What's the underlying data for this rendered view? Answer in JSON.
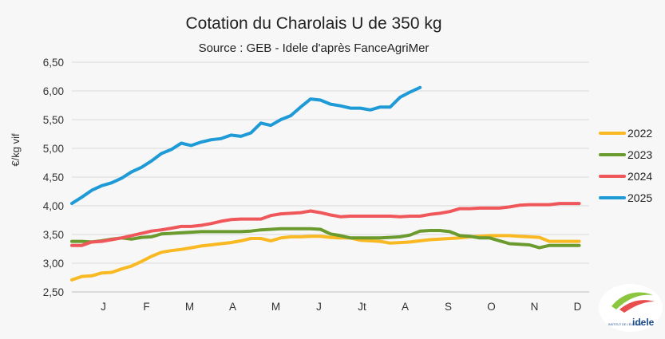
{
  "chart_data": {
    "type": "line",
    "title": "Cotation du Charolais U de 350 kg",
    "subtitle": "Source : GEB - Idele d'après FanceAgriMer",
    "xlabel": "",
    "ylabel": "€/kg vif",
    "ylim": [
      2.5,
      6.5
    ],
    "yticks": [
      "2,50",
      "3,00",
      "3,50",
      "4,00",
      "4,50",
      "5,00",
      "5,50",
      "6,00",
      "6,50"
    ],
    "x_range": [
      0,
      52
    ],
    "x_tick_labels": [
      "J",
      "F",
      "M",
      "A",
      "M",
      "J",
      "Jt",
      "A",
      "S",
      "O",
      "N",
      "D"
    ],
    "grid": true,
    "legend_position": "right",
    "series": [
      {
        "name": "2022",
        "color": "#f9b923",
        "x": [
          0,
          1,
          2,
          3,
          4,
          5,
          6,
          7,
          8,
          9,
          10,
          11,
          12,
          13,
          14,
          15,
          16,
          17,
          18,
          19,
          20,
          21,
          22,
          23,
          24,
          25,
          26,
          27,
          28,
          29,
          30,
          31,
          32,
          33,
          34,
          35,
          36,
          37,
          38,
          39,
          40,
          41,
          42,
          43,
          44,
          45,
          46,
          47,
          48,
          49,
          50,
          51
        ],
        "values": [
          2.71,
          2.77,
          2.78,
          2.83,
          2.84,
          2.9,
          2.95,
          3.03,
          3.12,
          3.19,
          3.22,
          3.24,
          3.27,
          3.3,
          3.32,
          3.34,
          3.36,
          3.39,
          3.43,
          3.43,
          3.39,
          3.44,
          3.46,
          3.46,
          3.47,
          3.47,
          3.45,
          3.44,
          3.44,
          3.4,
          3.39,
          3.38,
          3.35,
          3.36,
          3.37,
          3.39,
          3.41,
          3.42,
          3.43,
          3.44,
          3.46,
          3.47,
          3.48,
          3.48,
          3.48,
          3.47,
          3.46,
          3.45,
          3.38,
          3.38,
          3.38,
          3.38
        ]
      },
      {
        "name": "2023",
        "color": "#6b9a2e",
        "x": [
          0,
          1,
          2,
          3,
          4,
          5,
          6,
          7,
          8,
          9,
          10,
          11,
          12,
          13,
          14,
          15,
          16,
          17,
          18,
          19,
          20,
          21,
          22,
          23,
          24,
          25,
          26,
          27,
          28,
          29,
          30,
          31,
          32,
          33,
          34,
          35,
          36,
          37,
          38,
          39,
          40,
          41,
          42,
          43,
          44,
          45,
          46,
          47,
          48,
          49,
          50,
          51
        ],
        "values": [
          3.38,
          3.38,
          3.37,
          3.39,
          3.42,
          3.44,
          3.42,
          3.45,
          3.46,
          3.51,
          3.52,
          3.53,
          3.54,
          3.55,
          3.55,
          3.55,
          3.55,
          3.55,
          3.56,
          3.58,
          3.59,
          3.6,
          3.6,
          3.6,
          3.6,
          3.59,
          3.51,
          3.48,
          3.44,
          3.44,
          3.44,
          3.44,
          3.45,
          3.46,
          3.49,
          3.56,
          3.57,
          3.57,
          3.55,
          3.48,
          3.47,
          3.44,
          3.44,
          3.39,
          3.34,
          3.33,
          3.32,
          3.27,
          3.31,
          3.31,
          3.31,
          3.31
        ]
      },
      {
        "name": "2024",
        "color": "#f0575a",
        "x": [
          0,
          1,
          2,
          3,
          4,
          5,
          6,
          7,
          8,
          9,
          10,
          11,
          12,
          13,
          14,
          15,
          16,
          17,
          18,
          19,
          20,
          21,
          22,
          23,
          24,
          25,
          26,
          27,
          28,
          29,
          30,
          31,
          32,
          33,
          34,
          35,
          36,
          37,
          38,
          39,
          40,
          41,
          42,
          43,
          44,
          45,
          46,
          47,
          48,
          49,
          50,
          51
        ],
        "values": [
          3.31,
          3.31,
          3.37,
          3.38,
          3.41,
          3.44,
          3.48,
          3.52,
          3.56,
          3.58,
          3.61,
          3.64,
          3.64,
          3.66,
          3.69,
          3.73,
          3.76,
          3.77,
          3.77,
          3.77,
          3.83,
          3.86,
          3.87,
          3.88,
          3.91,
          3.88,
          3.84,
          3.81,
          3.82,
          3.82,
          3.82,
          3.82,
          3.82,
          3.81,
          3.82,
          3.82,
          3.85,
          3.87,
          3.9,
          3.95,
          3.95,
          3.96,
          3.96,
          3.96,
          3.98,
          4.01,
          4.02,
          4.02,
          4.02,
          4.04,
          4.04,
          4.04
        ]
      },
      {
        "name": "2025",
        "color": "#1e9ad6",
        "x": [
          0,
          1,
          2,
          3,
          4,
          5,
          6,
          7,
          8,
          9,
          10,
          11,
          12,
          13,
          14,
          15,
          16,
          17,
          18,
          19,
          20,
          21,
          22,
          23,
          24,
          25,
          26,
          27,
          28,
          29,
          30,
          31,
          32,
          33,
          34,
          35
        ],
        "values": [
          4.04,
          4.15,
          4.27,
          4.35,
          4.4,
          4.48,
          4.59,
          4.67,
          4.78,
          4.91,
          4.98,
          5.09,
          5.05,
          5.11,
          5.15,
          5.17,
          5.23,
          5.21,
          5.27,
          5.44,
          5.4,
          5.5,
          5.57,
          5.72,
          5.86,
          5.84,
          5.77,
          5.74,
          5.7,
          5.7,
          5.67,
          5.72,
          5.72,
          5.89,
          5.98,
          6.06
        ]
      }
    ]
  },
  "logo": {
    "text_top": "INSTITUT DE L'ÉLEVAGE",
    "text_brand": "idele"
  }
}
